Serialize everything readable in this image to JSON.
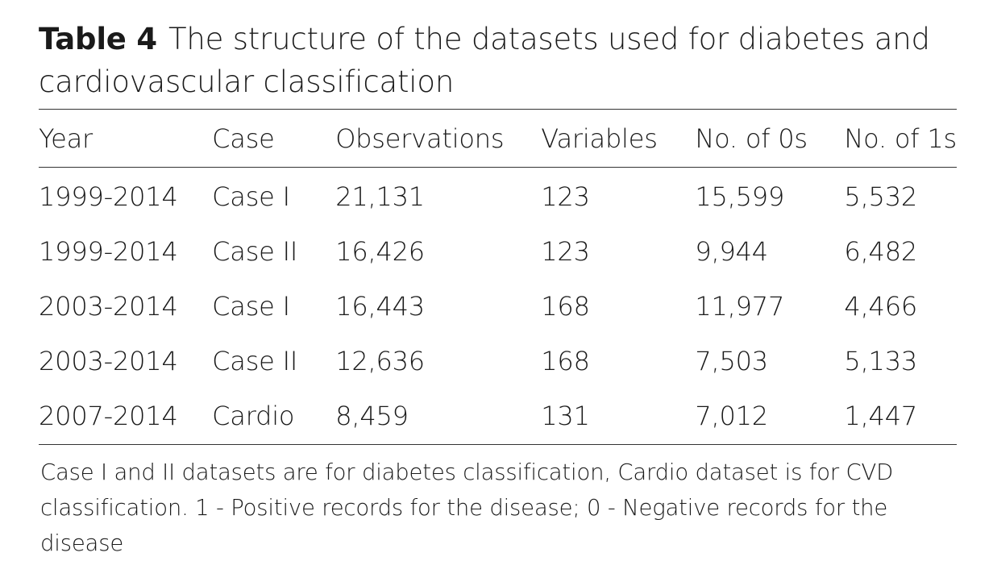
{
  "caption": {
    "label": "Table 4",
    "text": "The structure of the datasets used for diabetes and cardiovascular classification"
  },
  "table": {
    "headers": [
      "Year",
      "Case",
      "Observations",
      "Variables",
      "No. of 0s",
      "No. of 1s"
    ],
    "rows": [
      [
        "1999-2014",
        "Case I",
        "21,131",
        "123",
        "15,599",
        "5,532"
      ],
      [
        "1999-2014",
        "Case II",
        "16,426",
        "123",
        "9,944",
        "6,482"
      ],
      [
        "2003-2014",
        "Case I",
        "16,443",
        "168",
        "11,977",
        "4,466"
      ],
      [
        "2003-2014",
        "Case II",
        "12,636",
        "168",
        "7,503",
        "5,133"
      ],
      [
        "2007-2014",
        "Cardio",
        "8,459",
        "131",
        "7,012",
        "1,447"
      ]
    ]
  },
  "footnote": {
    "line1": "Case I and II datasets are for diabetes classification, Cardio dataset is for CVD",
    "line2": "classification. 1 - Positive records for the disease; 0 - Negative records for the disease"
  }
}
